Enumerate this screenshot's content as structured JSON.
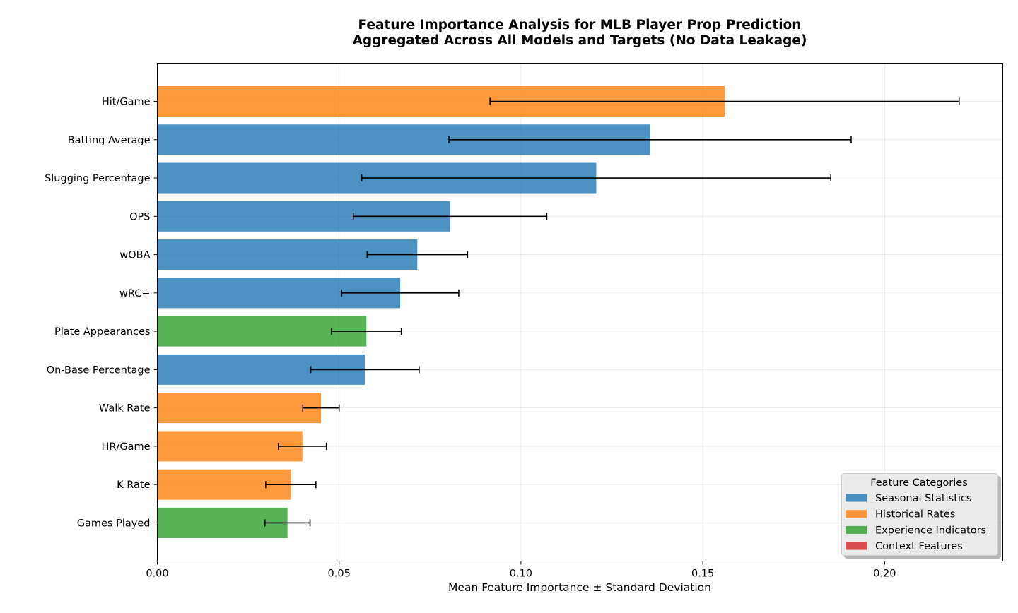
{
  "chart_data": {
    "type": "bar",
    "orientation": "horizontal",
    "title": "Feature Importance Analysis for MLB Player Prop Prediction",
    "subtitle": "Aggregated Across All Models and Targets (No Data Leakage)",
    "xlabel": "Mean Feature Importance ± Standard Deviation",
    "ylabel": "",
    "xlim": [
      0,
      0.2325
    ],
    "grid": true,
    "x_ticks": [
      0.0,
      0.05,
      0.1,
      0.15,
      0.2
    ],
    "x_tick_labels": [
      "0.00",
      "0.05",
      "0.10",
      "0.15",
      "0.20"
    ],
    "categories": [
      "Hit/Game",
      "Batting Average",
      "Slugging Percentage",
      "OPS",
      "wOBA",
      "wRC+",
      "Plate Appearances",
      "On-Base Percentage",
      "Walk Rate",
      "HR/Game",
      "K Rate",
      "Games Played"
    ],
    "values": [
      0.156,
      0.1355,
      0.1207,
      0.0805,
      0.0715,
      0.0668,
      0.0575,
      0.0571,
      0.045,
      0.0399,
      0.0367,
      0.0358
    ],
    "errors": [
      0.0645,
      0.0553,
      0.0645,
      0.0266,
      0.0138,
      0.0161,
      0.0096,
      0.0149,
      0.005,
      0.0066,
      0.0069,
      0.0062
    ],
    "groups": [
      "Historical Rates",
      "Seasonal Statistics",
      "Seasonal Statistics",
      "Seasonal Statistics",
      "Seasonal Statistics",
      "Seasonal Statistics",
      "Experience Indicators",
      "Seasonal Statistics",
      "Historical Rates",
      "Historical Rates",
      "Historical Rates",
      "Experience Indicators"
    ],
    "legend": {
      "title": "Feature Categories",
      "placement": "bottom-right",
      "entries": [
        {
          "name": "Seasonal Statistics",
          "color": "#1f77b4"
        },
        {
          "name": "Historical Rates",
          "color": "#ff7f0e"
        },
        {
          "name": "Experience Indicators",
          "color": "#2ca02c"
        },
        {
          "name": "Context Features",
          "color": "#d62728"
        }
      ]
    },
    "bar_alpha": 0.8
  }
}
